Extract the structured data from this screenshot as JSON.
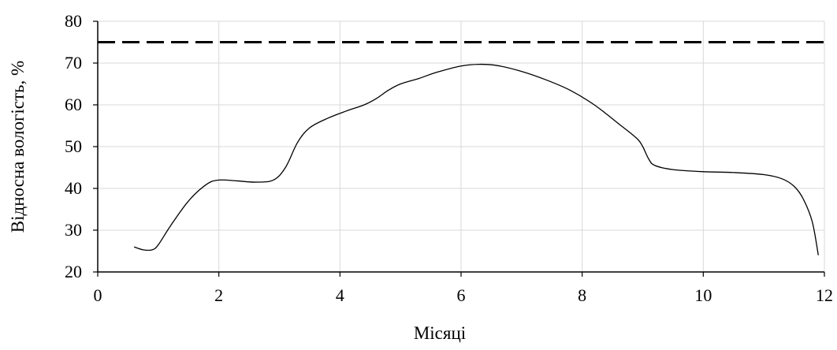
{
  "chart_data": {
    "type": "line",
    "title": "",
    "xlabel": "Місяці",
    "ylabel": "Відносна вологість, %",
    "xlim": [
      0,
      12
    ],
    "ylim": [
      20,
      80
    ],
    "x_ticks": [
      0,
      2,
      4,
      6,
      8,
      10,
      12
    ],
    "y_ticks": [
      20,
      30,
      40,
      50,
      60,
      70,
      80
    ],
    "x_tick_labels": [
      "0",
      "2",
      "4",
      "6",
      "8",
      "10",
      "12"
    ],
    "y_tick_labels": [
      "20",
      "30",
      "40",
      "50",
      "60",
      "70",
      "80"
    ],
    "grid": true,
    "legend": "none",
    "colors": {
      "line": "#000000",
      "grid": "#d9d9d9",
      "axis": "#000000"
    },
    "series": [
      {
        "style": "solid",
        "x": [
          0.6,
          0.75,
          0.9,
          1.0,
          1.2,
          1.5,
          1.8,
          2.0,
          2.3,
          2.6,
          2.9,
          3.1,
          3.3,
          3.5,
          3.8,
          4.1,
          4.4,
          4.6,
          4.8,
          5.0,
          5.3,
          5.6,
          6.0,
          6.3,
          6.6,
          7.0,
          7.4,
          7.8,
          8.2,
          8.6,
          8.9,
          9.0,
          9.1,
          9.2,
          9.5,
          10.0,
          10.5,
          11.0,
          11.3,
          11.5,
          11.65,
          11.8,
          11.9
        ],
        "y": [
          26,
          25.3,
          25.3,
          26.5,
          31,
          37,
          41,
          42,
          41.8,
          41.5,
          42,
          45,
          51,
          54.5,
          56.8,
          58.5,
          60,
          61.5,
          63.5,
          65,
          66.3,
          67.8,
          69.3,
          69.7,
          69.4,
          68,
          66,
          63.5,
          60,
          55.5,
          52,
          50,
          47,
          45.5,
          44.5,
          44,
          43.8,
          43.3,
          42.3,
          40.5,
          37.5,
          32,
          24
        ]
      },
      {
        "style": "dashed",
        "x": [
          0,
          12
        ],
        "y": [
          75,
          75
        ]
      }
    ]
  }
}
